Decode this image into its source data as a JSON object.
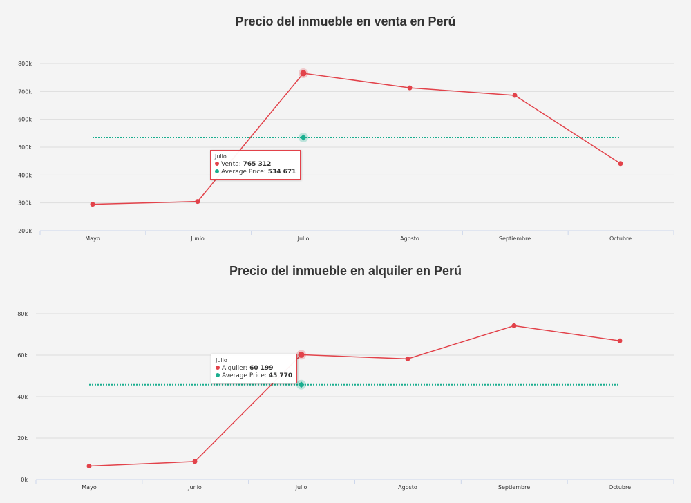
{
  "charts": [
    {
      "title": "Precio del inmueble en venta en Perú",
      "tooltip": {
        "header": "Julio",
        "series_label": "Venta:",
        "series_value": "765 312",
        "avg_label": "Average Price:",
        "avg_value": "534 671"
      }
    },
    {
      "title": "Precio del inmueble en alquiler en Perú",
      "tooltip": {
        "header": "Julio",
        "series_label": "Alquiler:",
        "series_value": "60 199",
        "avg_label": "Average Price:",
        "avg_value": "45 770"
      }
    }
  ],
  "colors": {
    "series": "#e2424a",
    "average": "#1aae8f",
    "grid": "#dddddd",
    "axis": "#ccd6eb",
    "text": "#333333"
  },
  "chart_data": [
    {
      "type": "line",
      "title": "Precio del inmueble en venta en Perú",
      "categories": [
        "Mayo",
        "Junio",
        "Julio",
        "Agosto",
        "Septiembre",
        "Octubre"
      ],
      "yticks": [
        "200k",
        "300k",
        "400k",
        "500k",
        "600k",
        "700k",
        "800k"
      ],
      "ylim": [
        200000,
        800000
      ],
      "grid": true,
      "highlight_index": 2,
      "series": [
        {
          "name": "Venta",
          "values": [
            295000,
            305000,
            765312,
            713000,
            686000,
            441000
          ]
        },
        {
          "name": "Average Price",
          "values": [
            534671,
            534671,
            534671,
            534671,
            534671,
            534671
          ],
          "style": "dotted"
        }
      ]
    },
    {
      "type": "line",
      "title": "Precio del inmueble en alquiler en Perú",
      "categories": [
        "Mayo",
        "Junio",
        "Julio",
        "Agosto",
        "Septiembre",
        "Octubre"
      ],
      "yticks": [
        "0k",
        "20k",
        "40k",
        "60k",
        "80k"
      ],
      "ylim": [
        0,
        80000
      ],
      "grid": true,
      "highlight_index": 2,
      "series": [
        {
          "name": "Alquiler",
          "values": [
            6500,
            8700,
            60199,
            58200,
            74200,
            66900
          ]
        },
        {
          "name": "Average Price",
          "values": [
            45770,
            45770,
            45770,
            45770,
            45770,
            45770
          ],
          "style": "dotted"
        }
      ]
    }
  ]
}
